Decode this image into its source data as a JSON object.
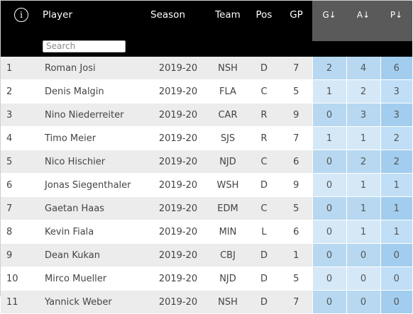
{
  "header": {
    "info_icon": "i",
    "columns": {
      "player": "Player",
      "season": "Season",
      "team": "Team",
      "pos": "Pos",
      "gp": "GP",
      "g": "G↓",
      "a": "A↓",
      "p": "P↓"
    },
    "search_placeholder": "Search"
  },
  "colors": {
    "header_bg": "#000000",
    "sorted_header_bg": "#5a5a5a",
    "stat_cell_blue": "#b7d8f0",
    "points_cell_blue": "#a2cdee"
  },
  "rows": [
    {
      "rank": "1",
      "player": "Roman Josi",
      "season": "2019-20",
      "team": "NSH",
      "pos": "D",
      "gp": "7",
      "g": "2",
      "a": "4",
      "p": "6"
    },
    {
      "rank": "2",
      "player": "Denis Malgin",
      "season": "2019-20",
      "team": "FLA",
      "pos": "C",
      "gp": "5",
      "g": "1",
      "a": "2",
      "p": "3"
    },
    {
      "rank": "3",
      "player": "Nino Niederreiter",
      "season": "2019-20",
      "team": "CAR",
      "pos": "R",
      "gp": "9",
      "g": "0",
      "a": "3",
      "p": "3"
    },
    {
      "rank": "4",
      "player": "Timo Meier",
      "season": "2019-20",
      "team": "SJS",
      "pos": "R",
      "gp": "7",
      "g": "1",
      "a": "1",
      "p": "2"
    },
    {
      "rank": "5",
      "player": "Nico Hischier",
      "season": "2019-20",
      "team": "NJD",
      "pos": "C",
      "gp": "6",
      "g": "0",
      "a": "2",
      "p": "2"
    },
    {
      "rank": "6",
      "player": "Jonas Siegenthaler",
      "season": "2019-20",
      "team": "WSH",
      "pos": "D",
      "gp": "9",
      "g": "0",
      "a": "1",
      "p": "1"
    },
    {
      "rank": "7",
      "player": "Gaetan Haas",
      "season": "2019-20",
      "team": "EDM",
      "pos": "C",
      "gp": "5",
      "g": "0",
      "a": "1",
      "p": "1"
    },
    {
      "rank": "8",
      "player": "Kevin Fiala",
      "season": "2019-20",
      "team": "MIN",
      "pos": "L",
      "gp": "6",
      "g": "0",
      "a": "1",
      "p": "1"
    },
    {
      "rank": "9",
      "player": "Dean Kukan",
      "season": "2019-20",
      "team": "CBJ",
      "pos": "D",
      "gp": "1",
      "g": "0",
      "a": "0",
      "p": "0"
    },
    {
      "rank": "10",
      "player": "Mirco Mueller",
      "season": "2019-20",
      "team": "NJD",
      "pos": "D",
      "gp": "5",
      "g": "0",
      "a": "0",
      "p": "0"
    },
    {
      "rank": "11",
      "player": "Yannick Weber",
      "season": "2019-20",
      "team": "NSH",
      "pos": "D",
      "gp": "7",
      "g": "0",
      "a": "0",
      "p": "0"
    }
  ]
}
